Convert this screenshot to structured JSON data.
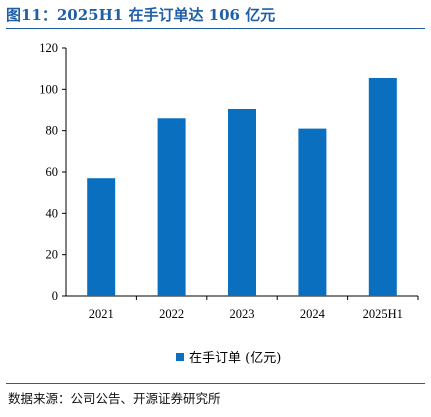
{
  "header": {
    "title": "图11：2025H1 在手订单达 106 亿元"
  },
  "footer": {
    "source": "数据来源：公司公告、开源证券研究所"
  },
  "colors": {
    "bar": "#0b6fc0",
    "accent": "#1f5fa8"
  },
  "chart_data": {
    "type": "bar",
    "categories": [
      "2021",
      "2022",
      "2023",
      "2024",
      "2025H1"
    ],
    "series": [
      {
        "name": "在手订单 (亿元)",
        "values": [
          57,
          86,
          90.5,
          81,
          105.5
        ]
      }
    ],
    "ylim": [
      0,
      120
    ],
    "yticks": [
      0,
      20,
      40,
      60,
      80,
      100,
      120
    ],
    "grid": false,
    "legend_position": "bottom-center"
  }
}
